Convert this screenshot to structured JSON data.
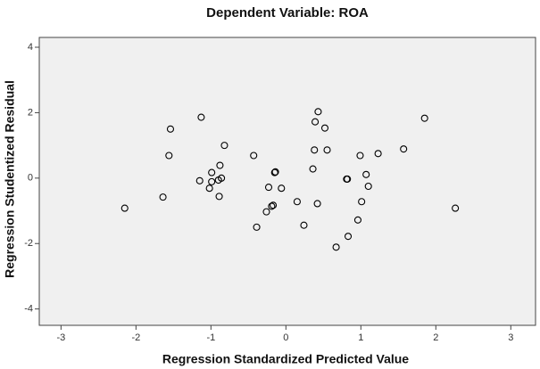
{
  "chart_data": {
    "type": "scatter",
    "title": "Dependent Variable: ROA",
    "x_label": "Regression Standardized Predicted Value",
    "y_label": "Regression Studentized Residual",
    "xlim": [
      -3.29,
      3.33
    ],
    "ylim": [
      -4.5,
      4.3
    ],
    "xticks": [
      -3,
      -2,
      -1,
      0,
      1,
      2,
      3
    ],
    "yticks": [
      -4,
      -2,
      0,
      2,
      4
    ],
    "color": "#000000",
    "background": "#f0f0f0",
    "x": [
      -2.15,
      -1.64,
      -1.54,
      -1.56,
      -1.13,
      -1.15,
      -0.99,
      -0.99,
      -1.02,
      -0.9,
      -0.86,
      -0.88,
      -0.89,
      -0.82,
      -0.43,
      -0.39,
      -0.26,
      -0.23,
      -0.19,
      -0.17,
      -0.15,
      -0.14,
      -0.06,
      0.15,
      0.24,
      0.36,
      0.38,
      0.39,
      0.43,
      0.42,
      0.52,
      0.55,
      0.67,
      0.81,
      0.82,
      0.83,
      0.96,
      0.99,
      1.01,
      1.07,
      1.1,
      1.23,
      1.57,
      1.85,
      2.26
    ],
    "values": [
      -0.92,
      -0.58,
      1.5,
      0.69,
      1.86,
      -0.08,
      0.17,
      -0.11,
      -0.31,
      -0.06,
      0,
      0.39,
      -0.56,
      1.0,
      0.69,
      -1.5,
      -1.03,
      -0.28,
      -0.86,
      -0.83,
      0.17,
      0.19,
      -0.31,
      -0.72,
      -1.44,
      0.28,
      0.86,
      1.72,
      2.03,
      -0.78,
      1.53,
      0.86,
      -2.11,
      -0.03,
      -0.03,
      -1.78,
      -1.28,
      0.69,
      -0.72,
      0.11,
      -0.25,
      0.75,
      0.89,
      1.83,
      -0.92
    ]
  }
}
